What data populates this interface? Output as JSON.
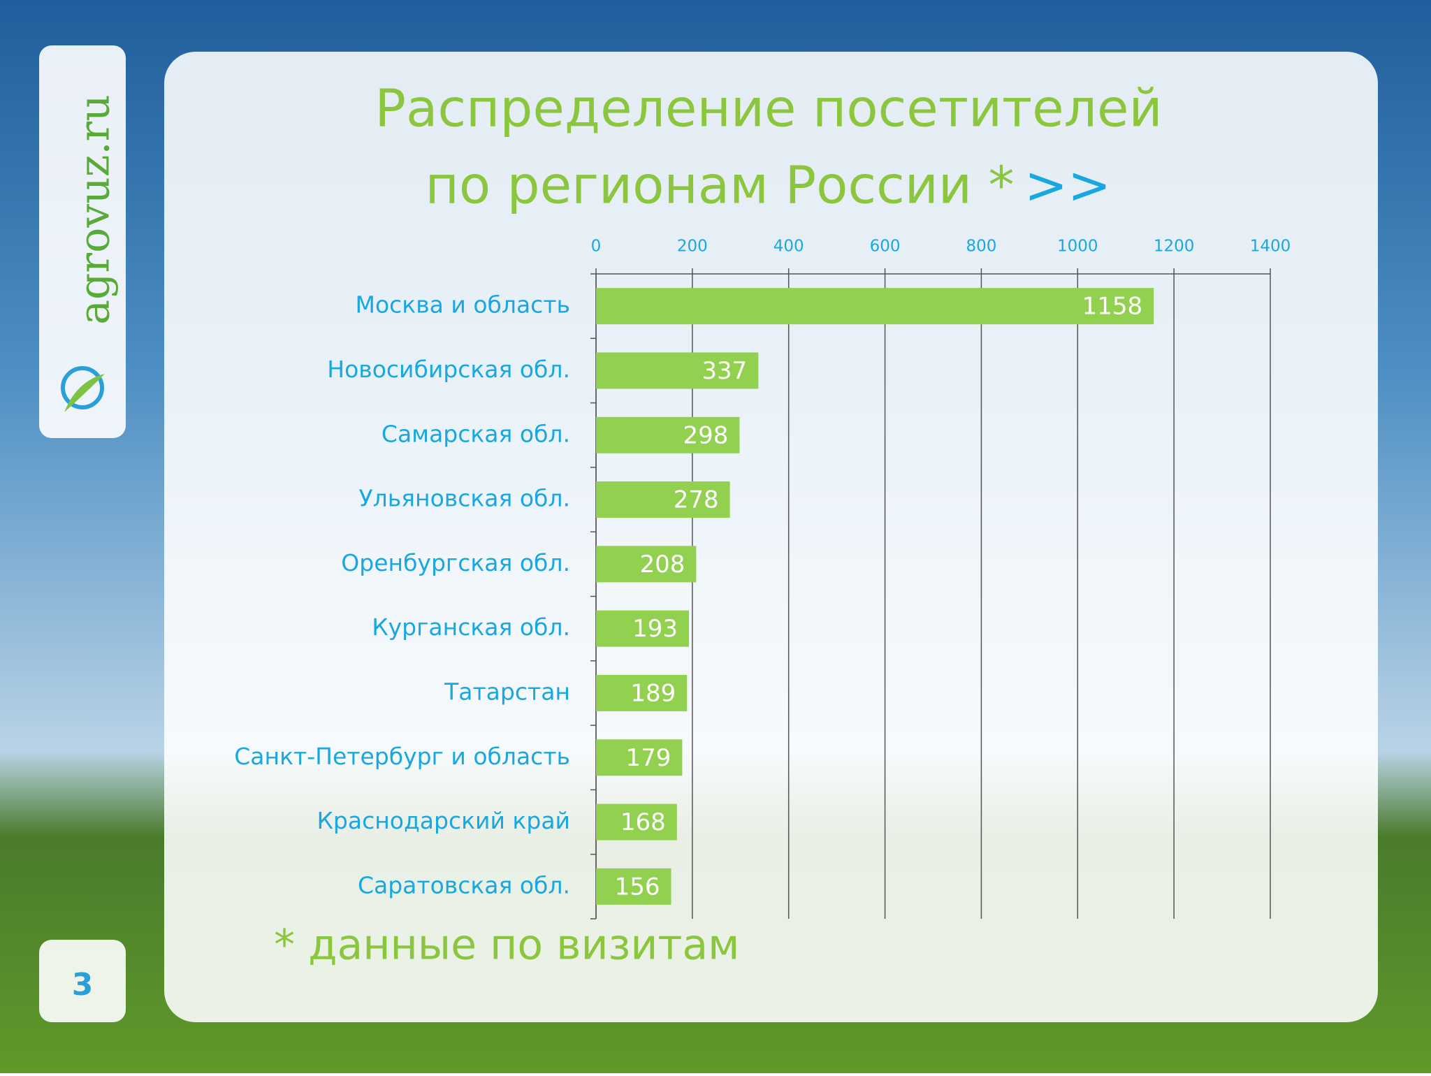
{
  "slide": {
    "logo": "agrovuz.ru",
    "page_number": "3",
    "next_link": ">>",
    "footnote": "* данные по визитам"
  },
  "chart_data": {
    "type": "bar",
    "horizontal": true,
    "title": [
      "Распределение посетителей",
      "по регионам России *"
    ],
    "categories": [
      "Москва и область",
      "Новосибирская обл.",
      "Самарская обл.",
      "Ульяновская обл.",
      "Оренбургская обл.",
      "Курганская обл.",
      "Татарстан",
      "Санкт-Петербург и область",
      "Краснодарский край",
      "Саратовская обл."
    ],
    "values": [
      1158,
      337,
      298,
      278,
      208,
      193,
      189,
      179,
      168,
      156
    ],
    "color": "#92d050",
    "xlim": [
      0,
      1400
    ],
    "xticks": [
      0,
      200,
      400,
      600,
      800,
      1000,
      1200,
      1400
    ],
    "grid": true
  }
}
